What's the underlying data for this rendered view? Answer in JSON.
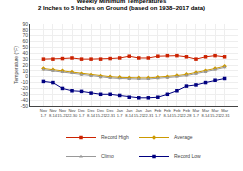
{
  "chart_data": {
    "type": "line",
    "title": "Weekly Minimum Temperatures",
    "subtitle": "2 Inches to 5 Inches on Ground (based on 1938–2017 data)",
    "ylabel": "Temperature (°F)",
    "categories": [
      "Nov\n1-7",
      "Nov\n8-14",
      "Nov\n15-21",
      "Nov\n22-30",
      "Dec\n1-7",
      "Dec\n8-14",
      "Dec\n15-21",
      "Dec\n22-31",
      "Jan\n1-7",
      "Jan\n8-14",
      "Jan\n15-21",
      "Jan\n22-31",
      "Feb\n1-7",
      "Feb\n8-14",
      "Feb\n15-21",
      "Feb\n22-28",
      "Mar\n1-7",
      "Mar\n8-14",
      "Mar\n15-21",
      "Mar\n22-31"
    ],
    "series": [
      {
        "name": "Record High",
        "color": "#cc2200",
        "marker": "square",
        "values": [
          30,
          30,
          31,
          32,
          30,
          30,
          30,
          31,
          32,
          35,
          32,
          32,
          35,
          36,
          36,
          34,
          30,
          34,
          36,
          34
        ]
      },
      {
        "name": "Average",
        "color": "#cc9900",
        "marker": "diamond",
        "values": [
          14,
          12,
          10,
          8,
          5,
          3,
          1,
          0,
          -1,
          -2,
          -2,
          -2,
          -1,
          0,
          2,
          4,
          7,
          10,
          14,
          18
        ]
      },
      {
        "name": "Climo",
        "color": "#999999",
        "marker": "triangle-up",
        "values": [
          12,
          10,
          8,
          6,
          3,
          1,
          -1,
          -2,
          -3,
          -4,
          -4,
          -4,
          -3,
          -2,
          0,
          2,
          5,
          8,
          12,
          16
        ]
      },
      {
        "name": "Record Low",
        "color": "#000080",
        "marker": "square",
        "values": [
          -8,
          -10,
          -20,
          -24,
          -25,
          -28,
          -30,
          -30,
          -32,
          -35,
          -36,
          -36,
          -35,
          -30,
          -24,
          -16,
          -14,
          -10,
          -6,
          -3
        ]
      }
    ],
    "ylim": [
      -50,
      90
    ],
    "yticks": [
      -50,
      -40,
      -30,
      -20,
      -10,
      0,
      10,
      20,
      30,
      40,
      50,
      60,
      70,
      80,
      90
    ],
    "grid": true,
    "legend": "bottom"
  }
}
